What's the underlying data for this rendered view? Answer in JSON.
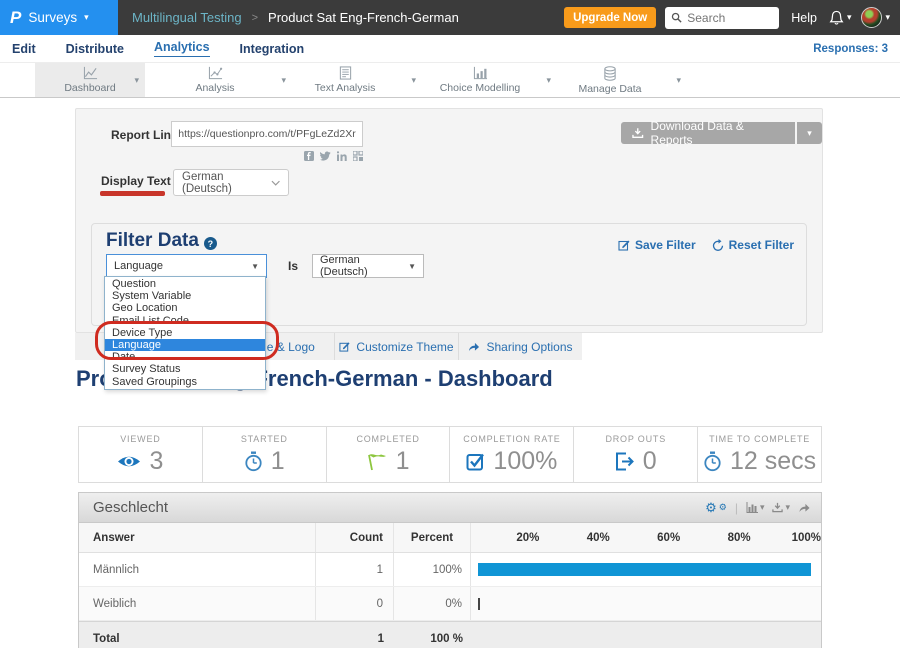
{
  "topbar": {
    "product": "Surveys",
    "breadcrumb_folder": "Multilingual Testing",
    "breadcrumb_sep": ">",
    "breadcrumb_survey": "Product Sat Eng-French-German",
    "upgrade_label": "Upgrade Now",
    "search_placeholder": "Search",
    "help_label": "Help"
  },
  "nav": {
    "edit": "Edit",
    "distribute": "Distribute",
    "analytics": "Analytics",
    "integration": "Integration",
    "responses": "Responses: 3"
  },
  "toolbar": {
    "dashboard": "Dashboard",
    "analysis": "Analysis",
    "text_analysis": "Text Analysis",
    "choice_modelling": "Choice Modelling",
    "manage_data": "Manage Data",
    "icons": [
      "line-chart-icon",
      "scatter-chart-icon",
      "document-icon",
      "bar-chart-icon",
      "database-icon"
    ]
  },
  "report": {
    "label": "Report Link",
    "url": "https://questionpro.com/t/PFgLeZd2Xr",
    "download_label": "Download Data & Reports",
    "social_icons": [
      "facebook-share-icon",
      "twitter-share-icon",
      "linkedin-share-icon",
      "qr-code-icon"
    ]
  },
  "display_text": {
    "label": "Display Text",
    "value": "German (Deutsch)"
  },
  "filter": {
    "title": "Filter Data",
    "save_label": "Save Filter",
    "reset_label": "Reset Filter",
    "field": "Language",
    "operator": "Is",
    "value": "German (Deutsch)",
    "options": [
      "Question",
      "System Variable",
      "Geo Location",
      "Email List Code",
      "Device Type",
      "Language",
      "Date",
      "Survey Status",
      "Saved Groupings"
    ],
    "highlighted_option": "Language"
  },
  "tabs": {
    "t1": "Title & Logo",
    "t2": "Customize Theme",
    "t3": "Sharing Options"
  },
  "page_title": "Product Sat Eng-French-German - Dashboard",
  "stats": [
    {
      "label": "VIEWED",
      "value": "3",
      "icon": "eye-icon"
    },
    {
      "label": "STARTED",
      "value": "1",
      "icon": "stopwatch-icon"
    },
    {
      "label": "COMPLETED",
      "value": "1",
      "icon": "flag-icon"
    },
    {
      "label": "COMPLETION RATE",
      "value": "100%",
      "icon": "checkbox-icon"
    },
    {
      "label": "DROP OUTS",
      "value": "0",
      "icon": "dropout-icon"
    },
    {
      "label": "TIME TO COMPLETE",
      "value": "12 secs",
      "icon": "stopwatch-icon"
    }
  ],
  "chart_data": {
    "type": "bar",
    "title": "Geschlecht",
    "categories": [
      "Männlich",
      "Weiblich"
    ],
    "values": [
      100,
      0
    ],
    "counts": [
      1,
      0
    ],
    "xlabel": "Percent",
    "ylabel": "Answer",
    "xlim": [
      0,
      100
    ],
    "tick_labels": [
      "20%",
      "40%",
      "60%",
      "80%",
      "100%"
    ],
    "bar_color": "#1095d5"
  },
  "geschlecht": {
    "title": "Geschlecht",
    "col_answer": "Answer",
    "col_count": "Count",
    "col_percent": "Percent",
    "scale": [
      "20%",
      "40%",
      "60%",
      "80%",
      "100%"
    ],
    "rows": [
      {
        "answer": "Männlich",
        "count": "1",
        "percent": "100%",
        "bar_pct": 100
      },
      {
        "answer": "Weiblich",
        "count": "0",
        "percent": "0%",
        "bar_pct": 0
      }
    ],
    "total_label": "Total",
    "total_count": "1",
    "total_percent": "100 %",
    "action_icons": [
      "cogs-icon",
      "chart-toggle-icon",
      "download-icon",
      "share-icon"
    ]
  },
  "colors": {
    "brand_blue": "#2490ef",
    "upgrade_orange": "#f89b1b",
    "navy": "#1e3f72",
    "link_blue": "#2a6fb0",
    "bar_blue": "#1095d5",
    "annotation_red": "#cf2b20",
    "flag_green": "#8dc63f"
  }
}
